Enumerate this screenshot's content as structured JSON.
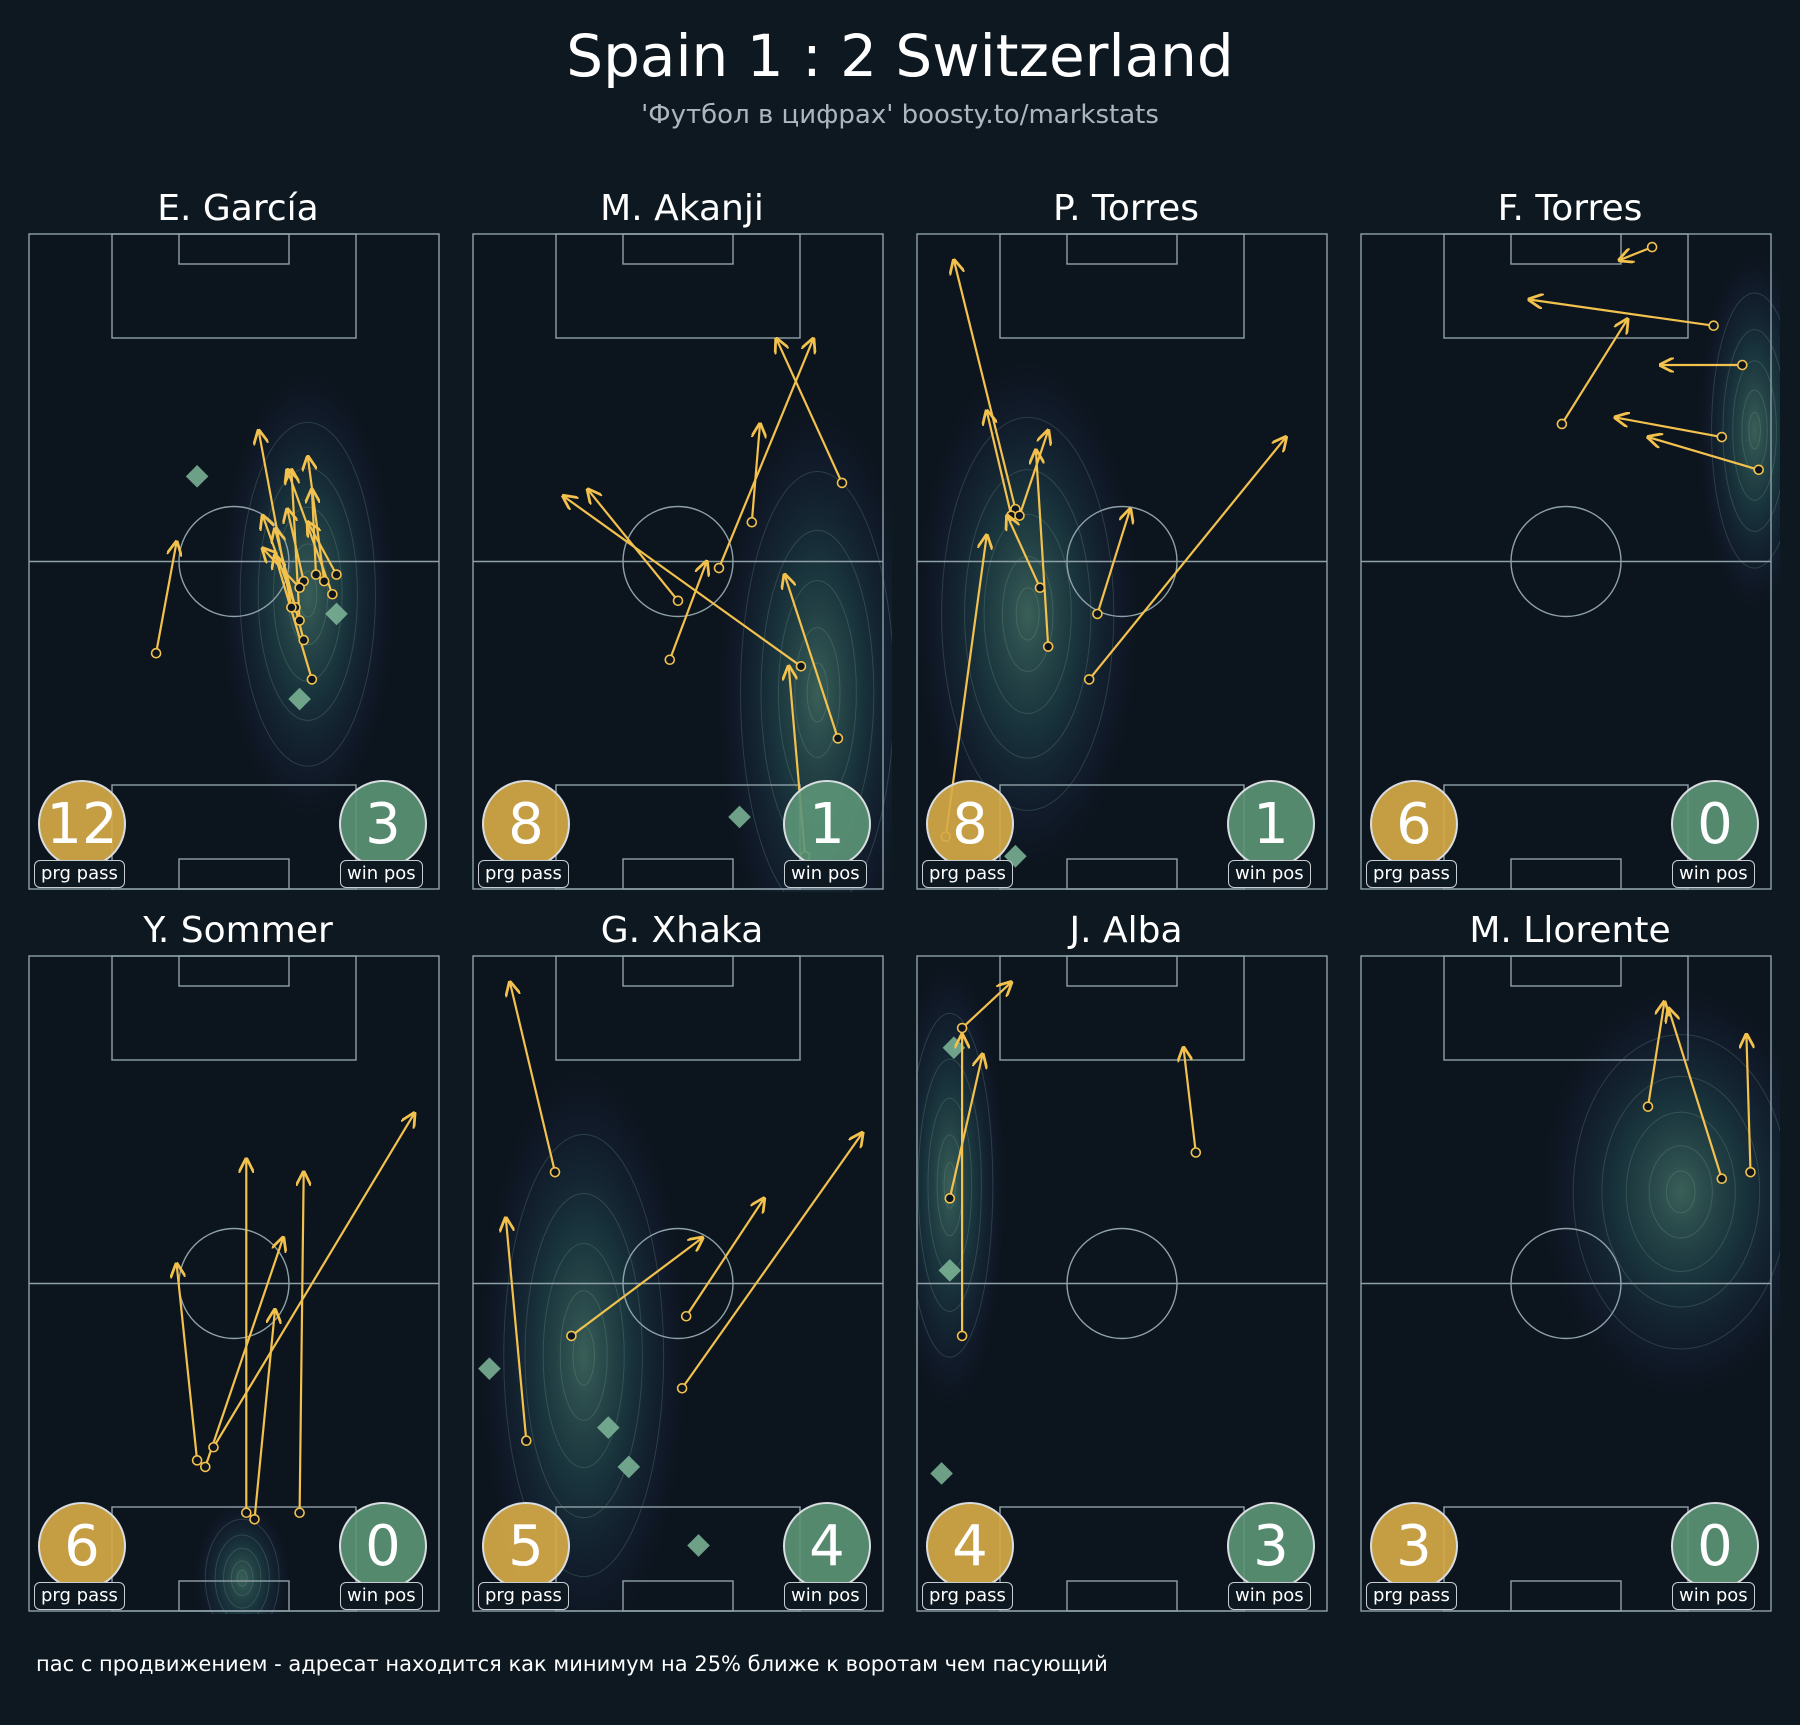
{
  "title": "Spain 1 : 2 Switzerland",
  "subtitle": "'Футбол в цифрах' boosty.to/markstats",
  "footnote": "пас с продвижением - адресат находится как минимум на 25% ближе к воротам чем пасующий",
  "prg_label": "prg pass",
  "win_label": "win pos",
  "colors": {
    "background": "#0d1821",
    "pitch_line": "#8fa1a8",
    "pass_arrow": "#f2c14e",
    "win_marker": "#7fb89a",
    "prg_badge": "#d6aa48",
    "win_badge": "#5c9678"
  },
  "chart_data": [
    {
      "type": "scatter",
      "player": "E. García",
      "prg_pass_count": 12,
      "win_pos_count": 3,
      "xlim": [
        0,
        100
      ],
      "ylim": [
        0,
        100
      ],
      "passes": [
        {
          "x1": 31,
          "y1": 36,
          "x2": 36,
          "y2": 53
        },
        {
          "x1": 69,
          "y1": 32,
          "x2": 60,
          "y2": 51
        },
        {
          "x1": 67,
          "y1": 38,
          "x2": 60,
          "y2": 55
        },
        {
          "x1": 66,
          "y1": 41,
          "x2": 64,
          "y2": 64
        },
        {
          "x1": 65,
          "y1": 43,
          "x2": 57,
          "y2": 57
        },
        {
          "x1": 67,
          "y1": 47,
          "x2": 63,
          "y2": 58
        },
        {
          "x1": 70,
          "y1": 48,
          "x2": 69,
          "y2": 61
        },
        {
          "x1": 75,
          "y1": 48,
          "x2": 68,
          "y2": 56
        },
        {
          "x1": 64,
          "y1": 43,
          "x2": 56,
          "y2": 70
        },
        {
          "x1": 66,
          "y1": 46,
          "x2": 57,
          "y2": 52
        },
        {
          "x1": 74,
          "y1": 45,
          "x2": 63,
          "y2": 64
        },
        {
          "x1": 72,
          "y1": 47,
          "x2": 68,
          "y2": 66
        }
      ],
      "win_pos": [
        {
          "x": 41,
          "y": 63
        },
        {
          "x": 75,
          "y": 42
        },
        {
          "x": 66,
          "y": 29
        }
      ],
      "density": [
        {
          "x": 68,
          "y": 45,
          "rx": 22,
          "ry": 35
        }
      ]
    },
    {
      "type": "scatter",
      "player": "M. Akanji",
      "prg_pass_count": 8,
      "win_pos_count": 1,
      "xlim": [
        0,
        100
      ],
      "ylim": [
        0,
        100
      ],
      "passes": [
        {
          "x1": 89,
          "y1": 23,
          "x2": 76,
          "y2": 48
        },
        {
          "x1": 50,
          "y1": 44,
          "x2": 28,
          "y2": 61
        },
        {
          "x1": 80,
          "y1": 34,
          "x2": 22,
          "y2": 60
        },
        {
          "x1": 90,
          "y1": 62,
          "x2": 74,
          "y2": 84
        },
        {
          "x1": 60,
          "y1": 49,
          "x2": 83,
          "y2": 84
        },
        {
          "x1": 48,
          "y1": 35,
          "x2": 57,
          "y2": 50
        },
        {
          "x1": 68,
          "y1": 56,
          "x2": 70,
          "y2": 71
        },
        {
          "x1": 81,
          "y1": 5,
          "x2": 77,
          "y2": 34
        }
      ],
      "win_pos": [
        {
          "x": 65,
          "y": 11
        }
      ],
      "density": [
        {
          "x": 84,
          "y": 30,
          "rx": 25,
          "ry": 45
        }
      ]
    },
    {
      "type": "scatter",
      "player": "P. Torres",
      "prg_pass_count": 8,
      "win_pos_count": 1,
      "xlim": [
        0,
        100
      ],
      "ylim": [
        0,
        100
      ],
      "passes": [
        {
          "x1": 7,
          "y1": 8,
          "x2": 17,
          "y2": 54
        },
        {
          "x1": 24,
          "y1": 58,
          "x2": 9,
          "y2": 96
        },
        {
          "x1": 23,
          "y1": 57,
          "x2": 17,
          "y2": 73
        },
        {
          "x1": 25,
          "y1": 57,
          "x2": 32,
          "y2": 70
        },
        {
          "x1": 30,
          "y1": 46,
          "x2": 22,
          "y2": 57
        },
        {
          "x1": 32,
          "y1": 37,
          "x2": 29,
          "y2": 67
        },
        {
          "x1": 44,
          "y1": 42,
          "x2": 52,
          "y2": 58
        },
        {
          "x1": 42,
          "y1": 32,
          "x2": 90,
          "y2": 69
        }
      ],
      "win_pos": [
        {
          "x": 24,
          "y": 5
        }
      ],
      "density": [
        {
          "x": 27,
          "y": 42,
          "rx": 28,
          "ry": 40
        }
      ]
    },
    {
      "type": "scatter",
      "player": "F. Torres",
      "prg_pass_count": 6,
      "win_pos_count": 0,
      "xlim": [
        0,
        100
      ],
      "ylim": [
        0,
        100
      ],
      "passes": [
        {
          "x1": 71,
          "y1": 98,
          "x2": 63,
          "y2": 96
        },
        {
          "x1": 86,
          "y1": 86,
          "x2": 41,
          "y2": 90
        },
        {
          "x1": 93,
          "y1": 80,
          "x2": 73,
          "y2": 80
        },
        {
          "x1": 49,
          "y1": 71,
          "x2": 65,
          "y2": 87
        },
        {
          "x1": 88,
          "y1": 69,
          "x2": 62,
          "y2": 72
        },
        {
          "x1": 97,
          "y1": 64,
          "x2": 70,
          "y2": 69
        }
      ],
      "win_pos": [],
      "density": [
        {
          "x": 96,
          "y": 70,
          "rx": 14,
          "ry": 28
        }
      ]
    },
    {
      "type": "scatter",
      "player": "Y. Sommer",
      "prg_pass_count": 6,
      "win_pos_count": 0,
      "xlim": [
        0,
        100
      ],
      "ylim": [
        0,
        100
      ],
      "passes": [
        {
          "x1": 41,
          "y1": 23,
          "x2": 36,
          "y2": 53
        },
        {
          "x1": 43,
          "y1": 22,
          "x2": 62,
          "y2": 57
        },
        {
          "x1": 45,
          "y1": 25,
          "x2": 94,
          "y2": 76
        },
        {
          "x1": 53,
          "y1": 15,
          "x2": 53,
          "y2": 69
        },
        {
          "x1": 55,
          "y1": 14,
          "x2": 60,
          "y2": 46
        },
        {
          "x1": 66,
          "y1": 15,
          "x2": 67,
          "y2": 67
        }
      ],
      "win_pos": [],
      "density": [
        {
          "x": 52,
          "y": 5,
          "rx": 12,
          "ry": 12
        }
      ]
    },
    {
      "type": "scatter",
      "player": "G. Xhaka",
      "prg_pass_count": 5,
      "win_pos_count": 4,
      "xlim": [
        0,
        100
      ],
      "ylim": [
        0,
        100
      ],
      "passes": [
        {
          "x1": 20,
          "y1": 67,
          "x2": 9,
          "y2": 96
        },
        {
          "x1": 13,
          "y1": 26,
          "x2": 8,
          "y2": 60
        },
        {
          "x1": 24,
          "y1": 42,
          "x2": 56,
          "y2": 57
        },
        {
          "x1": 52,
          "y1": 45,
          "x2": 71,
          "y2": 63
        },
        {
          "x1": 51,
          "y1": 34,
          "x2": 95,
          "y2": 73
        }
      ],
      "win_pos": [
        {
          "x": 4,
          "y": 37
        },
        {
          "x": 33,
          "y": 28
        },
        {
          "x": 38,
          "y": 22
        },
        {
          "x": 55,
          "y": 10
        }
      ],
      "density": [
        {
          "x": 27,
          "y": 39,
          "rx": 26,
          "ry": 45
        }
      ]
    },
    {
      "type": "scatter",
      "player": "J. Alba",
      "prg_pass_count": 4,
      "win_pos_count": 3,
      "xlim": [
        0,
        100
      ],
      "ylim": [
        0,
        100
      ],
      "passes": [
        {
          "x1": 11,
          "y1": 89,
          "x2": 23,
          "y2": 96
        },
        {
          "x1": 8,
          "y1": 63,
          "x2": 16,
          "y2": 85
        },
        {
          "x1": 11,
          "y1": 42,
          "x2": 11,
          "y2": 88
        },
        {
          "x1": 68,
          "y1": 70,
          "x2": 65,
          "y2": 86
        }
      ],
      "win_pos": [
        {
          "x": 9,
          "y": 86
        },
        {
          "x": 8,
          "y": 52
        },
        {
          "x": 6,
          "y": 21
        }
      ],
      "density": [
        {
          "x": 8,
          "y": 65,
          "rx": 14,
          "ry": 35
        }
      ]
    },
    {
      "type": "scatter",
      "player": "M. Llorente",
      "prg_pass_count": 3,
      "win_pos_count": 0,
      "xlim": [
        0,
        100
      ],
      "ylim": [
        0,
        100
      ],
      "passes": [
        {
          "x1": 70,
          "y1": 77,
          "x2": 74,
          "y2": 93
        },
        {
          "x1": 88,
          "y1": 66,
          "x2": 75,
          "y2": 92
        },
        {
          "x1": 95,
          "y1": 67,
          "x2": 94,
          "y2": 88
        }
      ],
      "win_pos": [],
      "density": [
        {
          "x": 78,
          "y": 64,
          "rx": 35,
          "ry": 32
        }
      ]
    }
  ]
}
